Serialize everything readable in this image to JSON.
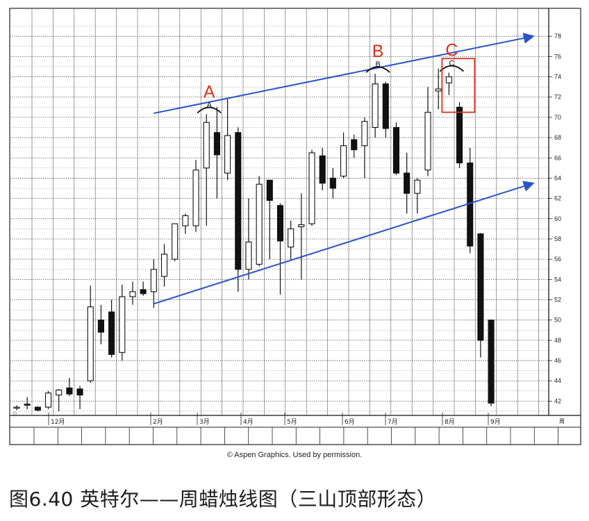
{
  "figure": {
    "credit": "© Aspen Graphics. Used by permission.",
    "caption": "图6.40 英特尔——周蜡烛线图（三山顶部形态）"
  },
  "chart_data": {
    "type": "candlestick",
    "period": "weekly",
    "grid": true,
    "ylim": [
      41,
      80
    ],
    "y_ticks": [
      42,
      44,
      46,
      48,
      50,
      52,
      54,
      56,
      58,
      60,
      62,
      64,
      66,
      68,
      70,
      72,
      74,
      76,
      78
    ],
    "x_labels": [
      "12月",
      "2月",
      "3月",
      "4月",
      "5月",
      "6月",
      "7月",
      "8月",
      "9月"
    ],
    "corner_label": "周",
    "start_marker": "☆",
    "candles": [
      {
        "o": 41.3,
        "h": 41.6,
        "l": 41.1,
        "c": 41.4,
        "d": "up"
      },
      {
        "o": 41.6,
        "h": 42.4,
        "l": 41.2,
        "c": 41.7,
        "d": "down"
      },
      {
        "o": 41.4,
        "h": 41.5,
        "l": 41.0,
        "c": 41.1,
        "d": "down"
      },
      {
        "o": 41.4,
        "h": 43.0,
        "l": 41.2,
        "c": 42.8,
        "d": "up"
      },
      {
        "o": 42.6,
        "h": 43.2,
        "l": 41.0,
        "c": 43.1,
        "d": "up"
      },
      {
        "o": 43.3,
        "h": 44.3,
        "l": 42.5,
        "c": 42.7,
        "d": "down"
      },
      {
        "o": 43.2,
        "h": 43.5,
        "l": 41.2,
        "c": 42.6,
        "d": "down"
      },
      {
        "o": 44.0,
        "h": 53.4,
        "l": 43.8,
        "c": 51.3,
        "d": "up"
      },
      {
        "o": 50.0,
        "h": 51.5,
        "l": 47.6,
        "c": 48.8,
        "d": "down"
      },
      {
        "o": 50.8,
        "h": 52.0,
        "l": 46.3,
        "c": 46.6,
        "d": "down"
      },
      {
        "o": 46.8,
        "h": 53.5,
        "l": 46.0,
        "c": 52.3,
        "d": "up"
      },
      {
        "o": 52.3,
        "h": 53.8,
        "l": 51.5,
        "c": 52.8,
        "d": "up"
      },
      {
        "o": 53.0,
        "h": 53.8,
        "l": 52.4,
        "c": 52.6,
        "d": "down"
      },
      {
        "o": 52.8,
        "h": 56.0,
        "l": 51.2,
        "c": 55.0,
        "d": "up"
      },
      {
        "o": 54.3,
        "h": 57.5,
        "l": 53.3,
        "c": 56.5,
        "d": "up"
      },
      {
        "o": 56.0,
        "h": 59.5,
        "l": 55.8,
        "c": 59.5,
        "d": "up"
      },
      {
        "o": 59.3,
        "h": 60.5,
        "l": 58.5,
        "c": 60.3,
        "d": "up"
      },
      {
        "o": 59.3,
        "h": 65.8,
        "l": 58.7,
        "c": 64.8,
        "d": "up"
      },
      {
        "o": 65.0,
        "h": 70.3,
        "l": 59.3,
        "c": 69.5,
        "d": "up"
      },
      {
        "o": 68.5,
        "h": 71.0,
        "l": 62.0,
        "c": 66.3,
        "d": "down"
      },
      {
        "o": 64.5,
        "h": 71.8,
        "l": 63.8,
        "c": 68.2,
        "d": "up"
      },
      {
        "o": 68.5,
        "h": 69.0,
        "l": 52.8,
        "c": 55.0,
        "d": "down"
      },
      {
        "o": 55.0,
        "h": 62.0,
        "l": 54.0,
        "c": 57.7,
        "d": "up"
      },
      {
        "o": 55.5,
        "h": 64.2,
        "l": 55.3,
        "c": 63.4,
        "d": "up"
      },
      {
        "o": 63.8,
        "h": 63.8,
        "l": 56.0,
        "c": 61.8,
        "d": "down"
      },
      {
        "o": 61.3,
        "h": 61.5,
        "l": 52.5,
        "c": 57.8,
        "d": "down"
      },
      {
        "o": 57.2,
        "h": 59.8,
        "l": 56.0,
        "c": 59.0,
        "d": "up"
      },
      {
        "o": 59.2,
        "h": 62.5,
        "l": 54.0,
        "c": 59.4,
        "d": "up"
      },
      {
        "o": 59.5,
        "h": 66.8,
        "l": 59.3,
        "c": 66.5,
        "d": "up"
      },
      {
        "o": 66.2,
        "h": 67.0,
        "l": 62.8,
        "c": 63.5,
        "d": "down"
      },
      {
        "o": 64.0,
        "h": 65.0,
        "l": 62.0,
        "c": 63.0,
        "d": "down"
      },
      {
        "o": 64.2,
        "h": 68.5,
        "l": 64.0,
        "c": 67.2,
        "d": "up"
      },
      {
        "o": 67.8,
        "h": 68.3,
        "l": 66.0,
        "c": 66.8,
        "d": "down"
      },
      {
        "o": 67.2,
        "h": 70.0,
        "l": 64.0,
        "c": 69.6,
        "d": "up"
      },
      {
        "o": 69.0,
        "h": 74.3,
        "l": 68.0,
        "c": 73.3,
        "d": "up"
      },
      {
        "o": 73.3,
        "h": 73.5,
        "l": 68.0,
        "c": 68.9,
        "d": "down"
      },
      {
        "o": 69.0,
        "h": 69.5,
        "l": 64.3,
        "c": 64.5,
        "d": "down"
      },
      {
        "o": 64.5,
        "h": 66.5,
        "l": 60.5,
        "c": 62.5,
        "d": "down"
      },
      {
        "o": 62.5,
        "h": 64.0,
        "l": 60.5,
        "c": 63.8,
        "d": "up"
      },
      {
        "o": 64.8,
        "h": 73.0,
        "l": 64.2,
        "c": 70.5,
        "d": "up"
      },
      {
        "o": 72.6,
        "h": 74.8,
        "l": 70.8,
        "c": 72.8,
        "d": "up"
      },
      {
        "o": 73.4,
        "h": 74.4,
        "l": 72.2,
        "c": 74.0,
        "d": "up"
      },
      {
        "o": 71.0,
        "h": 71.5,
        "l": 65.0,
        "c": 65.5,
        "d": "down"
      },
      {
        "o": 65.5,
        "h": 67.0,
        "l": 56.6,
        "c": 57.3,
        "d": "down"
      },
      {
        "o": 58.5,
        "h": 58.6,
        "l": 46.3,
        "c": 48.0,
        "d": "down"
      },
      {
        "o": 50.0,
        "h": 50.0,
        "l": 41.5,
        "c": 41.8,
        "d": "down"
      }
    ],
    "annotations": [
      {
        "label": "A",
        "printed": "A",
        "near_candle": 18
      },
      {
        "label": "B",
        "printed": "B",
        "near_candle": 34
      },
      {
        "label": "C",
        "printed": "C",
        "near_candle": 41
      }
    ],
    "trendlines": [
      {
        "name": "upper",
        "from": {
          "candle": 13,
          "price": 70.4
        },
        "to": {
          "candle": 49,
          "price": 78.0
        }
      },
      {
        "name": "lower",
        "from": {
          "candle": 13,
          "price": 51.6
        },
        "to": {
          "candle": 49,
          "price": 63.5
        }
      }
    ],
    "colors": {
      "up_body": "#ffffff",
      "down_body": "#111111",
      "grid": "#5a5a5a",
      "trendline": "#2b52c8",
      "annotation": "#d9301c"
    }
  }
}
